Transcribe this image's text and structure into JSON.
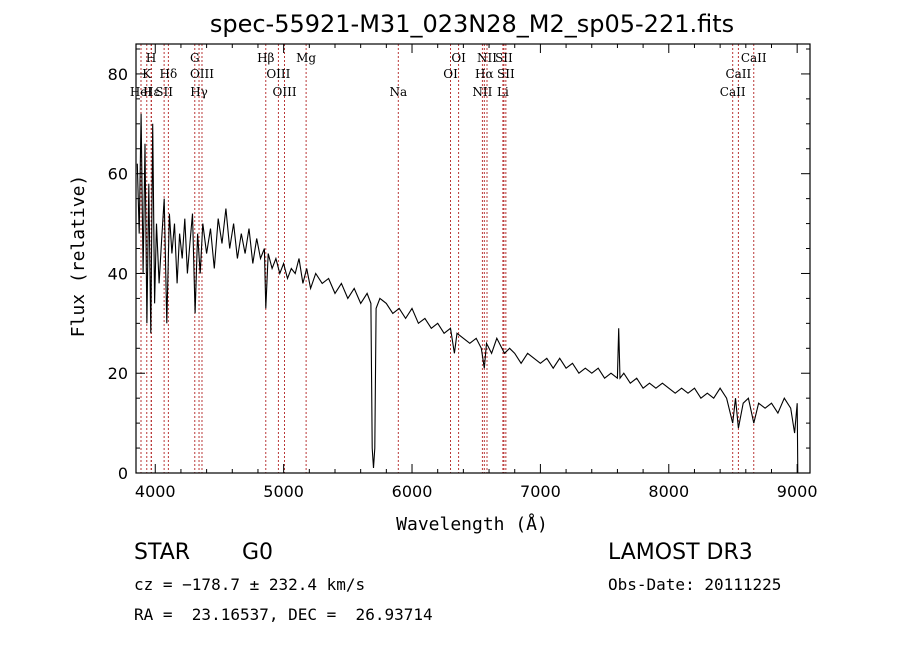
{
  "chart_data": {
    "type": "line",
    "title": "spec-55921-M31_023N28_M2_sp05-221.fits",
    "xlabel": "Wavelength (Å)",
    "ylabel": "Flux (relative)",
    "xlim": [
      3850,
      9100
    ],
    "ylim": [
      0,
      86
    ],
    "xticks": [
      4000,
      5000,
      6000,
      7000,
      8000,
      9000
    ],
    "xtick_labels": [
      "4000",
      "5000",
      "6000",
      "7000",
      "8000",
      "9000"
    ],
    "yticks": [
      0,
      20,
      40,
      60,
      80
    ],
    "ytick_labels": [
      "0",
      "20",
      "40",
      "60",
      "80"
    ],
    "series": [
      {
        "name": "spectrum",
        "x": [
          3860,
          3875,
          3890,
          3905,
          3920,
          3935,
          3950,
          3965,
          3980,
          3995,
          4010,
          4030,
          4050,
          4070,
          4090,
          4110,
          4130,
          4150,
          4170,
          4190,
          4210,
          4230,
          4250,
          4270,
          4290,
          4310,
          4330,
          4350,
          4370,
          4400,
          4430,
          4460,
          4490,
          4520,
          4550,
          4580,
          4610,
          4640,
          4670,
          4700,
          4730,
          4760,
          4790,
          4820,
          4850,
          4861,
          4880,
          4910,
          4940,
          4970,
          5000,
          5030,
          5060,
          5090,
          5120,
          5150,
          5180,
          5210,
          5250,
          5300,
          5350,
          5400,
          5450,
          5500,
          5550,
          5600,
          5650,
          5680,
          5690,
          5700,
          5710,
          5720,
          5750,
          5800,
          5850,
          5900,
          5950,
          6000,
          6050,
          6100,
          6150,
          6200,
          6250,
          6300,
          6330,
          6350,
          6400,
          6450,
          6500,
          6540,
          6563,
          6580,
          6620,
          6660,
          6700,
          6720,
          6760,
          6800,
          6850,
          6900,
          6950,
          7000,
          7050,
          7100,
          7150,
          7200,
          7250,
          7300,
          7350,
          7400,
          7450,
          7500,
          7550,
          7600,
          7610,
          7620,
          7650,
          7700,
          7750,
          7800,
          7850,
          7900,
          7950,
          8000,
          8050,
          8100,
          8150,
          8200,
          8250,
          8300,
          8350,
          8400,
          8450,
          8498,
          8520,
          8542,
          8580,
          8620,
          8662,
          8700,
          8750,
          8800,
          8850,
          8900,
          8950,
          8980,
          9000,
          9005
        ],
        "values": [
          62,
          48,
          72,
          40,
          66,
          30,
          58,
          28,
          70,
          34,
          50,
          38,
          47,
          55,
          30,
          52,
          44,
          50,
          38,
          48,
          43,
          51,
          40,
          46,
          52,
          32,
          48,
          40,
          50,
          44,
          49,
          41,
          51,
          46,
          53,
          45,
          50,
          43,
          48,
          44,
          49,
          42,
          47,
          43,
          45,
          33,
          44,
          41,
          43,
          40,
          42,
          39,
          41,
          40,
          43,
          38,
          41,
          37,
          40,
          38,
          39,
          36,
          38,
          35,
          37,
          34,
          36,
          34,
          5,
          1,
          5,
          33,
          35,
          34,
          32,
          33,
          31,
          33,
          30,
          31,
          29,
          30,
          28,
          29,
          24,
          28,
          27,
          26,
          27,
          25,
          21,
          26,
          24,
          27,
          25,
          24,
          25,
          24,
          22,
          24,
          23,
          22,
          23,
          21,
          23,
          21,
          22,
          20,
          21,
          20,
          21,
          19,
          20,
          19,
          29,
          19,
          20,
          18,
          19,
          17,
          18,
          17,
          18,
          17,
          16,
          17,
          16,
          17,
          15,
          16,
          15,
          17,
          15,
          10,
          15,
          9,
          14,
          15,
          10,
          14,
          13,
          14,
          12,
          15,
          13,
          8,
          14,
          0
        ]
      }
    ],
    "line_markers": [
      {
        "label": "Hε",
        "wavelength": 3970,
        "row": 3
      },
      {
        "label": "HeI",
        "wavelength": 3889,
        "row": 3
      },
      {
        "label": "K",
        "wavelength": 3934,
        "row": 2
      },
      {
        "label": "H",
        "wavelength": 3968,
        "row": 1
      },
      {
        "label": "SII",
        "wavelength": 4069,
        "row": 3
      },
      {
        "label": "Hδ",
        "wavelength": 4102,
        "row": 2
      },
      {
        "label": "G",
        "wavelength": 4308,
        "row": 1
      },
      {
        "label": "OIII",
        "wavelength": 4364,
        "row": 2
      },
      {
        "label": "Hγ",
        "wavelength": 4341,
        "row": 3
      },
      {
        "label": "Hβ",
        "wavelength": 4861,
        "row": 1
      },
      {
        "label": "OIII",
        "wavelength": 4959,
        "row": 2
      },
      {
        "label": "OIII",
        "wavelength": 5007,
        "row": 3
      },
      {
        "label": "Mg",
        "wavelength": 5175,
        "row": 1
      },
      {
        "label": "Na",
        "wavelength": 5893,
        "row": 3
      },
      {
        "label": "OI",
        "wavelength": 6363,
        "row": 1
      },
      {
        "label": "OI",
        "wavelength": 6300,
        "row": 2
      },
      {
        "label": "NII",
        "wavelength": 6548,
        "row": 3
      },
      {
        "label": "NII",
        "wavelength": 6584,
        "row": 1
      },
      {
        "label": "Hα",
        "wavelength": 6563,
        "row": 2
      },
      {
        "label": "SII",
        "wavelength": 6716,
        "row": 1
      },
      {
        "label": "SII",
        "wavelength": 6731,
        "row": 2
      },
      {
        "label": "Li",
        "wavelength": 6708,
        "row": 3
      },
      {
        "label": "CaII",
        "wavelength": 8662,
        "row": 1
      },
      {
        "label": "CaII",
        "wavelength": 8542,
        "row": 2
      },
      {
        "label": "CaII",
        "wavelength": 8498,
        "row": 3
      }
    ],
    "marker_color": "#b22222",
    "line_color": "#000000"
  },
  "info": {
    "class": "STAR",
    "subclass": "G0",
    "survey": "LAMOST DR3",
    "cz": "cz = −178.7 ± 232.4 km/s",
    "obs_date": "Obs-Date: 20111225",
    "radec": "RA =  23.16537, DEC =  26.93714"
  }
}
